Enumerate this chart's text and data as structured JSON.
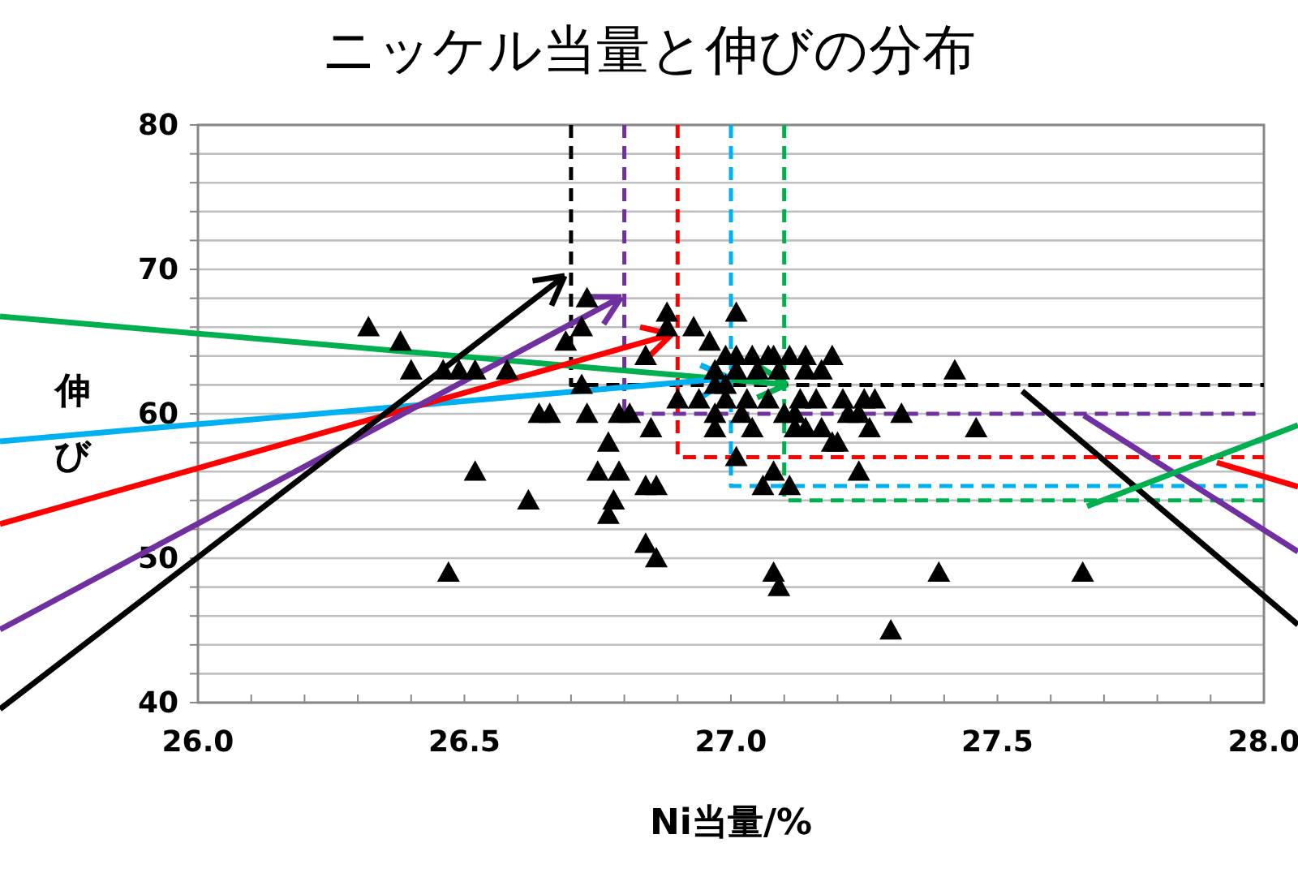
{
  "chart_data": {
    "type": "scatter",
    "title": "ニッケル当量と伸びの分布",
    "xlabel": "Ni当量/%",
    "ylabel": "伸び",
    "xlim": [
      26,
      28
    ],
    "ylim": [
      40,
      80
    ],
    "xticks": [
      {
        "value": 26,
        "label": "26.0"
      },
      {
        "value": 26.1,
        "label": null
      },
      {
        "value": 26.2,
        "label": null
      },
      {
        "value": 26.3,
        "label": null
      },
      {
        "value": 26.4,
        "label": null
      },
      {
        "value": 26.5,
        "label": "26.5"
      },
      {
        "value": 26.6,
        "label": null
      },
      {
        "value": 26.7,
        "label": null
      },
      {
        "value": 26.8,
        "label": null
      },
      {
        "value": 26.9,
        "label": null
      },
      {
        "value": 27,
        "label": "27.0"
      },
      {
        "value": 27.1,
        "label": null
      },
      {
        "value": 27.2,
        "label": null
      },
      {
        "value": 27.3,
        "label": null
      },
      {
        "value": 27.4,
        "label": null
      },
      {
        "value": 27.5,
        "label": "27.5"
      },
      {
        "value": 27.6,
        "label": null
      },
      {
        "value": 27.7,
        "label": null
      },
      {
        "value": 27.8,
        "label": null
      },
      {
        "value": 27.9,
        "label": null
      },
      {
        "value": 28,
        "label": "28.0"
      }
    ],
    "yticks": [
      40,
      {
        "value": 42,
        "label": null
      },
      {
        "value": 44,
        "label": null
      },
      {
        "value": 46,
        "label": null
      },
      {
        "value": 48,
        "label": null
      },
      50,
      {
        "value": 52,
        "label": null
      },
      {
        "value": 54,
        "label": null
      },
      {
        "value": 56,
        "label": null
      },
      {
        "value": 58,
        "label": null
      },
      60,
      {
        "value": 62,
        "label": null
      },
      {
        "value": 64,
        "label": null
      },
      {
        "value": 66,
        "label": null
      },
      {
        "value": 68,
        "label": null
      },
      70,
      {
        "value": 72,
        "label": null
      },
      {
        "value": 74,
        "label": null
      },
      {
        "value": 76,
        "label": null
      },
      {
        "value": 78,
        "label": null
      },
      80
    ],
    "grid": "y",
    "marker": "triangle",
    "series": [
      {
        "type": "scatter",
        "color": "#000000",
        "x": [
          26.32,
          26.38,
          26.4,
          26.46,
          26.49,
          26.52,
          26.58,
          26.52,
          26.62,
          26.47,
          26.69,
          26.73,
          26.72,
          26.72,
          26.64,
          26.66,
          26.73,
          26.79,
          26.81,
          26.85,
          26.77,
          26.75,
          26.79,
          26.84,
          26.86,
          26.78,
          26.77,
          26.84,
          26.86,
          26.88,
          26.88,
          26.93,
          26.96,
          26.84,
          26.99,
          26.9,
          26.94,
          26.97,
          27.01,
          26.97,
          26.99,
          27.01,
          27.04,
          27.07,
          27.08,
          27.11,
          27.14,
          27.19,
          26.97,
          27.01,
          27.05,
          27.09,
          27.14,
          27.17,
          26.99,
          27.03,
          27.07,
          27.13,
          27.16,
          27.21,
          27.25,
          27.27,
          26.97,
          27.02,
          27.1,
          27.12,
          27.22,
          27.24,
          27.32,
          27.04,
          27.12,
          27.14,
          27.17,
          27.26,
          27.46,
          27.19,
          27.2,
          27.42,
          27.01,
          27.08,
          27.24,
          27.06,
          27.11,
          27.08,
          27.09,
          27.39,
          27.66,
          27.3
        ],
        "values": [
          66,
          65,
          63,
          63,
          63,
          63,
          63,
          56,
          54,
          49,
          65,
          68,
          66,
          62,
          60,
          60,
          60,
          60,
          60,
          59,
          58,
          56,
          56,
          55,
          55,
          54,
          53,
          51,
          50,
          67,
          66,
          66,
          65,
          64,
          64,
          61,
          61,
          59,
          67,
          62,
          62,
          64,
          64,
          64,
          64,
          64,
          64,
          64,
          63,
          63,
          63,
          63,
          63,
          63,
          61,
          61,
          61,
          61,
          61,
          61,
          61,
          61,
          60,
          60,
          60,
          60,
          60,
          60,
          60,
          59,
          59,
          59,
          59,
          59,
          59,
          58,
          58,
          63,
          57,
          56,
          56,
          55,
          55,
          49,
          48,
          49,
          49,
          45
        ]
      },
      {
        "type": "line",
        "line_style": "dashed",
        "marker": "none",
        "color": "#000000",
        "x": [
          26.7,
          26.7,
          28
        ],
        "values": [
          80,
          62,
          62
        ]
      },
      {
        "type": "line",
        "line_style": "dashed",
        "marker": "none",
        "color": "#7030a0",
        "x": [
          26.8,
          26.8,
          28
        ],
        "values": [
          80,
          60,
          60
        ]
      },
      {
        "type": "line",
        "line_style": "dashed",
        "marker": "none",
        "color": "#ff0000",
        "x": [
          26.9,
          26.9,
          28
        ],
        "values": [
          80,
          57,
          57
        ]
      },
      {
        "type": "line",
        "line_style": "dashed",
        "marker": "none",
        "color": "#00b0f0",
        "x": [
          27,
          27,
          28
        ],
        "values": [
          80,
          55,
          55
        ]
      },
      {
        "type": "line",
        "line_style": "dashed",
        "marker": "none",
        "color": "#00b050",
        "x": [
          27.1,
          27.1,
          28
        ],
        "values": [
          80,
          54,
          54
        ]
      }
    ]
  }
}
